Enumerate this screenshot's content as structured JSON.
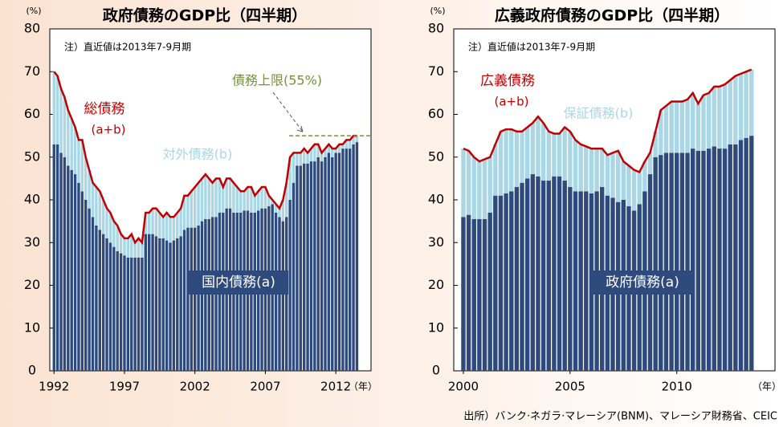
{
  "source": "出所）バンク·ネガラ·マレーシア(BNM)、マレーシア財務省、CEIC",
  "chart_data": [
    {
      "type": "bar",
      "stacked": true,
      "title": "政府債務のGDP比（四半期）",
      "y_unit": "(%)",
      "x_unit": "（年）",
      "note": "注）直近値は2013年7-9月期",
      "grid": false,
      "total_line": {
        "color": "#c00000",
        "label": "総債務",
        "sublabel": "(a+b)"
      },
      "reference_line": {
        "label": "債務上限(55%)",
        "value": 55,
        "color": "#76923c"
      },
      "xlim": [
        1991.7,
        2014.5
      ],
      "xticks": [
        1992,
        1997,
        2002,
        2007,
        2012
      ],
      "ylim": [
        0,
        80
      ],
      "yticks": [
        0,
        10,
        20,
        30,
        40,
        50,
        60,
        70,
        80
      ],
      "x": [
        1992,
        1992.25,
        1992.5,
        1992.75,
        1993,
        1993.25,
        1993.5,
        1993.75,
        1994,
        1994.25,
        1994.5,
        1994.75,
        1995,
        1995.25,
        1995.5,
        1995.75,
        1996,
        1996.25,
        1996.5,
        1996.75,
        1997,
        1997.25,
        1997.5,
        1997.75,
        1998,
        1998.25,
        1998.5,
        1998.75,
        1999,
        1999.25,
        1999.5,
        1999.75,
        2000,
        2000.25,
        2000.5,
        2000.75,
        2001,
        2001.25,
        2001.5,
        2001.75,
        2002,
        2002.25,
        2002.5,
        2002.75,
        2003,
        2003.25,
        2003.5,
        2003.75,
        2004,
        2004.25,
        2004.5,
        2004.75,
        2005,
        2005.25,
        2005.5,
        2005.75,
        2006,
        2006.25,
        2006.5,
        2006.75,
        2007,
        2007.25,
        2007.5,
        2007.75,
        2008,
        2008.25,
        2008.5,
        2008.75,
        2009,
        2009.25,
        2009.5,
        2009.75,
        2010,
        2010.25,
        2010.5,
        2010.75,
        2011,
        2011.25,
        2011.5,
        2011.75,
        2012,
        2012.25,
        2012.5,
        2012.75,
        2013,
        2013.25,
        2013.5
      ],
      "series": [
        {
          "name": "国内債務(a)",
          "color": "#2e4a7d",
          "values": [
            53,
            53,
            51,
            50,
            48,
            47,
            46,
            44,
            42,
            40,
            38,
            36,
            34,
            33,
            32,
            31,
            30,
            29,
            28,
            27.5,
            27,
            26.5,
            26.5,
            26.5,
            26.5,
            26.5,
            32,
            32,
            32,
            31.5,
            31,
            31,
            30.5,
            30,
            30.5,
            31,
            31.5,
            33,
            33.5,
            33.5,
            33.5,
            34,
            35,
            35.5,
            35.5,
            36,
            36,
            37,
            37,
            38,
            38,
            37,
            37,
            37,
            37.5,
            37.5,
            37,
            37,
            37.5,
            38,
            38,
            38.5,
            39,
            37,
            36,
            35,
            36,
            40,
            44,
            48,
            48,
            48.5,
            48.5,
            49,
            49,
            50,
            49,
            50,
            51,
            50,
            51,
            51,
            52,
            52,
            52,
            53,
            53.5
          ]
        },
        {
          "name": "対外債務(b)",
          "color": "#a9d7e6",
          "values": [
            17,
            16,
            15,
            14,
            13,
            12,
            11,
            10,
            12,
            10,
            9,
            8,
            9,
            9,
            8,
            7,
            7,
            6,
            6,
            4.5,
            4,
            4.5,
            5.5,
            3.5,
            4.5,
            3.5,
            5,
            5,
            6,
            6.5,
            6,
            5,
            6.5,
            6,
            5.5,
            6,
            6.5,
            8,
            7.5,
            8.5,
            9.5,
            10,
            10,
            10.5,
            9.5,
            8,
            9,
            8,
            6,
            7,
            7,
            7,
            6,
            5,
            4.5,
            5.5,
            6,
            4,
            4.5,
            5,
            5,
            2.5,
            1,
            2,
            2,
            5,
            8,
            10,
            7,
            3,
            3,
            3.5,
            2.5,
            3,
            4,
            3,
            2,
            2,
            2,
            2,
            1,
            2,
            1,
            2,
            2,
            2,
            1.5
          ]
        }
      ]
    },
    {
      "type": "bar",
      "stacked": true,
      "title": "広義政府債務のGDP比（四半期）",
      "y_unit": "(%)",
      "x_unit": "（年）",
      "note": "注）直近値は2013年7-9月期",
      "grid": false,
      "total_line": {
        "color": "#c00000",
        "label": "広義債務",
        "sublabel": "(a+b)"
      },
      "xlim": [
        1999.55,
        2014.6
      ],
      "xticks": [
        2000,
        2005,
        2010
      ],
      "ylim": [
        0,
        80
      ],
      "yticks": [
        0,
        10,
        20,
        30,
        40,
        50,
        60,
        70,
        80
      ],
      "x": [
        2000,
        2000.25,
        2000.5,
        2000.75,
        2001,
        2001.25,
        2001.5,
        2001.75,
        2002,
        2002.25,
        2002.5,
        2002.75,
        2003,
        2003.25,
        2003.5,
        2003.75,
        2004,
        2004.25,
        2004.5,
        2004.75,
        2005,
        2005.25,
        2005.5,
        2005.75,
        2006,
        2006.25,
        2006.5,
        2006.75,
        2007,
        2007.25,
        2007.5,
        2007.75,
        2008,
        2008.25,
        2008.5,
        2008.75,
        2009,
        2009.25,
        2009.5,
        2009.75,
        2010,
        2010.25,
        2010.5,
        2010.75,
        2011,
        2011.25,
        2011.5,
        2011.75,
        2012,
        2012.25,
        2012.5,
        2012.75,
        2013,
        2013.25,
        2013.5
      ],
      "series": [
        {
          "name": "政府債務(a)",
          "color": "#2e4a7d",
          "values": [
            36,
            36.5,
            35.5,
            35.5,
            35.5,
            37,
            41,
            41,
            41.5,
            42,
            43,
            44,
            45,
            46,
            45.5,
            44.5,
            44.5,
            45.5,
            45.5,
            44.5,
            43,
            42,
            42,
            42,
            41.5,
            42,
            43,
            41,
            40.5,
            39.5,
            40,
            38.5,
            37.5,
            39,
            42,
            46,
            50,
            50.5,
            51,
            51,
            51,
            51,
            51,
            52,
            51.5,
            51.5,
            52,
            52.5,
            52,
            52,
            53,
            53,
            54,
            54.5,
            55
          ]
        },
        {
          "name": "保証債務(b)",
          "color": "#a9d7e6",
          "values": [
            16,
            15,
            14.5,
            13.5,
            14,
            13,
            12,
            15,
            15,
            14.5,
            13,
            12,
            12,
            12,
            14,
            13.5,
            11.5,
            10,
            10,
            12.5,
            13,
            12,
            11,
            10.5,
            10.5,
            10,
            9,
            9.5,
            10.5,
            12,
            9,
            9.5,
            9.5,
            7.5,
            7,
            5,
            6,
            10.5,
            11,
            12,
            12,
            12,
            12.5,
            13,
            11,
            13,
            13,
            14,
            14.5,
            15,
            15,
            16,
            15.5,
            15.5,
            15.5
          ]
        }
      ]
    }
  ]
}
